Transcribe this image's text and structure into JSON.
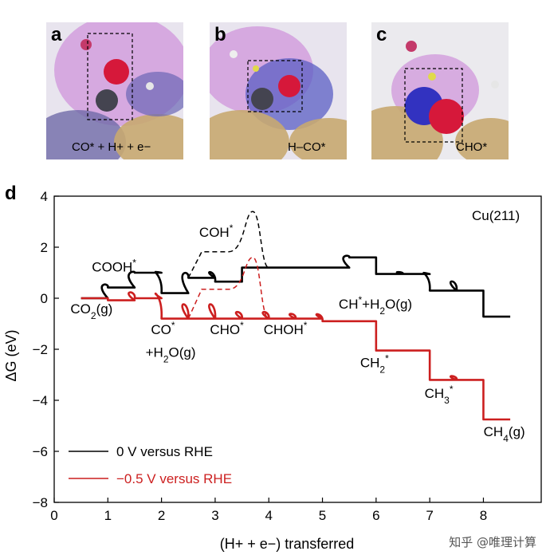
{
  "panels": [
    {
      "letter": "a",
      "caption": "CO* + H+ + e−"
    },
    {
      "letter": "b",
      "caption": "H–CO*"
    },
    {
      "letter": "c",
      "caption": "CHO*"
    }
  ],
  "watermark": "知乎 @唯理计算",
  "chart_data": {
    "type": "line",
    "panel_label": "d",
    "facet_label": "Cu(211)",
    "xlabel": "(H+ + e−) transferred",
    "ylabel": "ΔG (eV)",
    "xlim": [
      0,
      9
    ],
    "ylim": [
      -8,
      4
    ],
    "xticks": [
      0,
      1,
      2,
      3,
      4,
      5,
      6,
      7,
      8
    ],
    "yticks": [
      4,
      2,
      0,
      -2,
      -4,
      -6,
      -8
    ],
    "grid": false,
    "legend_position": "bottom-left",
    "series": [
      {
        "name": "0 V versus RHE",
        "color": "#000000",
        "levels": [
          {
            "x0": 0.5,
            "x1": 1.0,
            "y": 0.0
          },
          {
            "x0": 1.0,
            "x1": 1.5,
            "y": 0.42
          },
          {
            "x0": 1.5,
            "x1": 2.0,
            "y": 1.0
          },
          {
            "x0": 2.0,
            "x1": 2.5,
            "y": 0.2
          },
          {
            "x0": 2.5,
            "x1": 3.0,
            "y": 0.8
          },
          {
            "x0": 3.0,
            "x1": 3.5,
            "y": 0.65
          },
          {
            "x0": 3.5,
            "x1": 4.0,
            "y": 1.2
          },
          {
            "x0": 4.0,
            "x1": 5.5,
            "y": 1.2
          },
          {
            "x0": 5.5,
            "x1": 6.0,
            "y": 1.6
          },
          {
            "x0": 6.0,
            "x1": 6.5,
            "y": 0.95
          },
          {
            "x0": 6.5,
            "x1": 7.0,
            "y": 0.95
          },
          {
            "x0": 7.0,
            "x1": 7.5,
            "y": 0.3
          },
          {
            "x0": 7.5,
            "x1": 8.0,
            "y": 0.3
          },
          {
            "x0": 8.0,
            "x1": 8.5,
            "y": -0.72
          }
        ],
        "barriers": [
          {
            "x": 0.8,
            "y": 0.62
          },
          {
            "x": 1.75,
            "y": 1.08
          },
          {
            "x": 2.75,
            "y": 1.12
          },
          {
            "x": 4.75,
            "y": 1.62
          },
          {
            "x": 5.65,
            "y": 1.72
          },
          {
            "x": 6.7,
            "y": 1.05
          },
          {
            "x": 7.65,
            "y": 0.78
          }
        ],
        "alt_path": [
          {
            "x0": 2.75,
            "x1": 3.25,
            "y": 1.82
          },
          {
            "x": 3.7,
            "y": 3.4
          }
        ]
      },
      {
        "name": "−0.5 V versus RHE",
        "color": "#cc1f1f",
        "levels": [
          {
            "x0": 0.5,
            "x1": 1.0,
            "y": 0.0
          },
          {
            "x0": 1.0,
            "x1": 1.5,
            "y": -0.08
          },
          {
            "x0": 1.5,
            "x1": 2.0,
            "y": 0.0
          },
          {
            "x0": 2.0,
            "x1": 2.5,
            "y": -0.8
          },
          {
            "x0": 2.5,
            "x1": 3.0,
            "y": -0.8
          },
          {
            "x0": 3.0,
            "x1": 3.5,
            "y": -0.8
          },
          {
            "x0": 3.5,
            "x1": 4.0,
            "y": -0.8
          },
          {
            "x0": 4.0,
            "x1": 4.5,
            "y": -0.8
          },
          {
            "x0": 4.5,
            "x1": 5.0,
            "y": -0.8
          },
          {
            "x0": 5.0,
            "x1": 5.5,
            "y": -0.9
          },
          {
            "x0": 5.5,
            "x1": 6.0,
            "y": -0.9
          },
          {
            "x0": 6.0,
            "x1": 6.5,
            "y": -2.05
          },
          {
            "x0": 6.5,
            "x1": 7.0,
            "y": -2.05
          },
          {
            "x0": 7.0,
            "x1": 7.5,
            "y": -3.2
          },
          {
            "x0": 7.5,
            "x1": 8.0,
            "y": -3.2
          },
          {
            "x0": 8.0,
            "x1": 8.5,
            "y": -4.75
          }
        ],
        "barriers": [
          {
            "x": 1.7,
            "y": 0.32
          },
          {
            "x": 2.75,
            "y": -0.05
          },
          {
            "x": 3.75,
            "y": -0.45
          },
          {
            "x": 4.75,
            "y": -0.55
          },
          {
            "x": 7.65,
            "y": -3.0
          }
        ],
        "alt_path": [
          {
            "x0": 2.75,
            "x1": 3.25,
            "y": 0.35
          },
          {
            "x": 3.7,
            "y": 1.6
          }
        ]
      }
    ],
    "annotations": [
      {
        "text": "COOH*",
        "x": 1.0,
        "y": 1.05
      },
      {
        "text": "COH*",
        "x": 3.0,
        "y": 2.4
      },
      {
        "text": "CO2(g)",
        "x": 0.6,
        "y": -0.6
      },
      {
        "text": "CO*",
        "x": 2.1,
        "y": -1.4
      },
      {
        "text": "+H2O(g)",
        "x": 2.0,
        "y": -2.3
      },
      {
        "text": "CHO*",
        "x": 3.2,
        "y": -1.4
      },
      {
        "text": "CHOH*",
        "x": 4.2,
        "y": -1.4
      },
      {
        "text": "CH*+H2O(g)",
        "x": 5.6,
        "y": -0.4
      },
      {
        "text": "CH2*",
        "x": 6.0,
        "y": -2.7
      },
      {
        "text": "CH3*",
        "x": 7.2,
        "y": -3.9
      },
      {
        "text": "CH4(g)",
        "x": 8.3,
        "y": -5.4
      }
    ]
  }
}
